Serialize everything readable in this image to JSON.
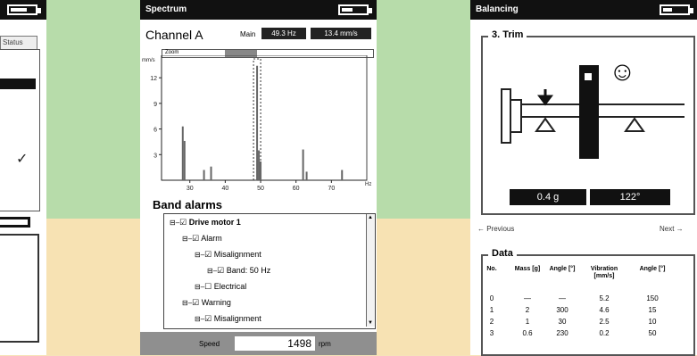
{
  "left_panel": {
    "status_tab": "Status",
    "check": "✓"
  },
  "spectrum": {
    "title": "Spectrum",
    "channel": "Channel A",
    "main_label": "Main",
    "main_freq": "49.3 Hz",
    "main_amp": "13.4 mm/s",
    "zoom_label": "Zoom",
    "y_unit": "mm/s",
    "x_unit": "Hz",
    "band_alarms_title": "Band alarms",
    "tree": [
      {
        "label": "Drive motor 1",
        "checked": true,
        "bold": true
      },
      {
        "label": "Alarm",
        "checked": true
      },
      {
        "label": "Misalignment",
        "checked": true
      },
      {
        "label": "Band: 50 Hz",
        "checked": true
      },
      {
        "label": "Electrical",
        "checked": false
      },
      {
        "label": "Warning",
        "checked": true
      },
      {
        "label": "Misalignment",
        "checked": true
      }
    ],
    "speed_label": "Speed",
    "speed_value": "1498",
    "speed_unit": "rpm"
  },
  "chart_data": {
    "type": "bar",
    "title": "",
    "xlabel": "Hz",
    "ylabel": "mm/s",
    "x_ticks": [
      30,
      40,
      50,
      60,
      70
    ],
    "y_ticks": [
      3,
      6,
      9,
      12
    ],
    "xlim": [
      22,
      80
    ],
    "ylim": [
      0,
      14
    ],
    "grid": false,
    "x": [
      28,
      28.5,
      34,
      36,
      49,
      49.5,
      50,
      62,
      63,
      73
    ],
    "values": [
      6.3,
      4.6,
      1.2,
      1.6,
      13.4,
      3.5,
      2.2,
      3.6,
      1.0,
      1.2
    ]
  },
  "balancing": {
    "title": "Balancing",
    "trim_title": "3. Trim",
    "smiley": "☺",
    "mass": "0.4 g",
    "angle": "122°",
    "previous": "← Previous",
    "next": "Next →",
    "data_title": "Data",
    "headers": [
      "No.",
      "Mass [g]",
      "Angle [°]",
      "Vibration [mm/s]",
      "Angle [°]"
    ],
    "rows": [
      [
        "0",
        "—",
        "—",
        "5.2",
        "150"
      ],
      [
        "1",
        "2",
        "300",
        "4.6",
        "15"
      ],
      [
        "2",
        "1",
        "30",
        "2.5",
        "10"
      ],
      [
        "3",
        "0.6",
        "230",
        "0.2",
        "50"
      ]
    ]
  }
}
